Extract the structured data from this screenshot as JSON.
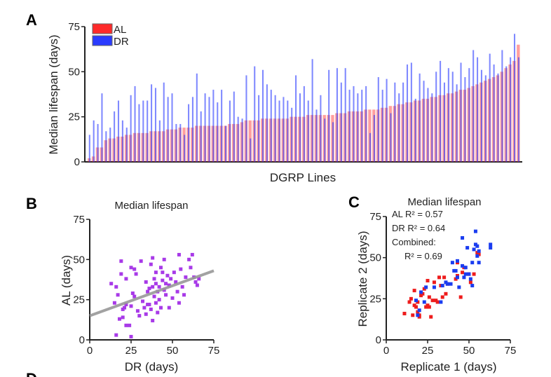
{
  "chart_data": [
    {
      "panel": "A",
      "type": "bar",
      "ylabel": "Median lifespan (days)",
      "xlabel": "DGRP Lines",
      "ylim": [
        0,
        75
      ],
      "yticks": [
        0,
        25,
        50,
        75
      ],
      "legend_placement": "top-left",
      "colors": {
        "AL": "#ff2a2a",
        "DR": "#2a3bff"
      },
      "series": [
        {
          "name": "AL",
          "values": [
            2,
            3,
            8,
            8,
            12,
            13,
            13,
            14,
            14,
            15,
            15,
            16,
            16,
            16,
            16,
            17,
            17,
            17,
            17,
            18,
            18,
            18,
            19,
            19,
            19,
            19,
            20,
            20,
            20,
            20,
            20,
            20,
            20,
            20,
            21,
            21,
            21,
            22,
            23,
            23,
            23,
            23,
            24,
            24,
            24,
            24,
            24,
            24,
            24,
            25,
            25,
            25,
            25,
            26,
            26,
            26,
            26,
            26,
            26,
            26,
            27,
            27,
            27,
            28,
            28,
            28,
            28,
            29,
            29,
            29,
            29,
            30,
            30,
            31,
            31,
            32,
            32,
            33,
            33,
            34,
            34,
            35,
            35,
            36,
            36,
            37,
            37,
            38,
            38,
            39,
            40,
            40,
            41,
            42,
            43,
            44,
            45,
            46,
            47,
            48,
            50,
            52,
            54,
            56,
            65
          ]
        },
        {
          "name": "DR",
          "values": [
            15,
            23,
            21,
            38,
            17,
            19,
            28,
            34,
            23,
            19,
            37,
            42,
            32,
            34,
            34,
            43,
            41,
            23,
            44,
            36,
            38,
            21,
            21,
            15,
            32,
            36,
            49,
            28,
            38,
            36,
            40,
            33,
            40,
            20,
            34,
            39,
            25,
            24,
            48,
            13,
            53,
            37,
            51,
            43,
            40,
            37,
            34,
            36,
            34,
            30,
            48,
            38,
            42,
            34,
            57,
            29,
            37,
            24,
            51,
            22,
            52,
            44,
            52,
            40,
            42,
            38,
            40,
            42,
            16,
            26,
            47,
            40,
            46,
            27,
            44,
            38,
            44,
            54,
            55,
            35,
            49,
            45,
            41,
            38,
            50,
            56,
            44,
            52,
            50,
            43,
            55,
            47,
            52,
            62,
            58,
            51,
            48,
            60,
            54,
            49,
            62,
            53,
            58,
            71,
            58
          ]
        }
      ]
    },
    {
      "panel": "B",
      "type": "scatter",
      "title": "Median lifespan",
      "xlabel": "DR (days)",
      "ylabel": "AL (days)",
      "xlim": [
        0,
        75
      ],
      "ylim": [
        0,
        75
      ],
      "xticks": [
        0,
        25,
        50,
        75
      ],
      "yticks": [
        0,
        25,
        50,
        75
      ],
      "colors": {
        "points": "#a83ae8",
        "fit": "#999999"
      },
      "fit_line": [
        [
          0,
          15
        ],
        [
          75,
          43
        ]
      ],
      "points": [
        [
          13,
          35
        ],
        [
          16,
          33
        ],
        [
          15,
          23
        ],
        [
          17,
          28
        ],
        [
          19,
          49
        ],
        [
          19,
          41
        ],
        [
          20,
          19
        ],
        [
          21,
          20
        ],
        [
          22,
          38
        ],
        [
          22,
          22
        ],
        [
          18,
          13
        ],
        [
          20,
          14
        ],
        [
          22,
          9
        ],
        [
          24,
          9
        ],
        [
          16,
          3
        ],
        [
          25,
          2
        ],
        [
          25,
          45
        ],
        [
          27,
          44
        ],
        [
          28,
          41
        ],
        [
          26,
          29
        ],
        [
          27,
          27
        ],
        [
          25,
          21
        ],
        [
          29,
          18
        ],
        [
          30,
          15
        ],
        [
          31,
          49
        ],
        [
          32,
          24
        ],
        [
          33,
          20
        ],
        [
          34,
          36
        ],
        [
          34,
          16
        ],
        [
          35,
          30
        ],
        [
          36,
          32
        ],
        [
          36,
          22
        ],
        [
          37,
          19
        ],
        [
          37,
          47
        ],
        [
          38,
          51
        ],
        [
          38,
          12
        ],
        [
          39,
          38
        ],
        [
          39,
          27
        ],
        [
          40,
          42
        ],
        [
          40,
          35
        ],
        [
          41,
          30
        ],
        [
          41,
          17
        ],
        [
          42,
          33
        ],
        [
          42,
          25
        ],
        [
          43,
          45
        ],
        [
          43,
          20
        ],
        [
          44,
          37
        ],
        [
          45,
          50
        ],
        [
          45,
          31
        ],
        [
          46,
          28
        ],
        [
          47,
          40
        ],
        [
          48,
          34
        ],
        [
          48,
          20
        ],
        [
          49,
          38
        ],
        [
          50,
          26
        ],
        [
          51,
          42
        ],
        [
          52,
          36
        ],
        [
          53,
          30
        ],
        [
          54,
          53
        ],
        [
          54,
          23
        ],
        [
          55,
          44
        ],
        [
          56,
          33
        ],
        [
          57,
          28
        ],
        [
          58,
          39
        ],
        [
          60,
          50
        ],
        [
          61,
          45
        ],
        [
          62,
          53
        ],
        [
          63,
          39
        ],
        [
          64,
          36
        ],
        [
          65,
          34
        ],
        [
          66,
          38
        ],
        [
          44,
          42
        ],
        [
          38,
          33
        ],
        [
          40,
          23
        ],
        [
          35,
          22
        ],
        [
          46,
          35
        ]
      ]
    },
    {
      "panel": "C",
      "type": "scatter",
      "title": "Median lifespan",
      "xlabel": "Replicate 1 (days)",
      "ylabel": "Replicate 2 (days)",
      "xlim": [
        0,
        75
      ],
      "ylim": [
        0,
        75
      ],
      "xticks": [
        0,
        25,
        50,
        75
      ],
      "yticks": [
        0,
        25,
        50,
        75
      ],
      "annotations": [
        "AL R² = 0.57",
        "DR R² = 0.64",
        "Combined:",
        "R² = 0.69"
      ],
      "series": [
        {
          "name": "AL",
          "color": "#ee1c1c",
          "points": [
            [
              11,
              16
            ],
            [
              14,
              23
            ],
            [
              15,
              25
            ],
            [
              16,
              15
            ],
            [
              17,
              21
            ],
            [
              17,
              30
            ],
            [
              18,
              20
            ],
            [
              19,
              23
            ],
            [
              19,
              17
            ],
            [
              20,
              15
            ],
            [
              20,
              14
            ],
            [
              21,
              27
            ],
            [
              22,
              28
            ],
            [
              23,
              31
            ],
            [
              24,
              20
            ],
            [
              25,
              36
            ],
            [
              25,
              21
            ],
            [
              26,
              26
            ],
            [
              26,
              20
            ],
            [
              27,
              14
            ],
            [
              28,
              24
            ],
            [
              29,
              35
            ],
            [
              30,
              24
            ],
            [
              31,
              23
            ],
            [
              32,
              38
            ],
            [
              33,
              33
            ],
            [
              34,
              26
            ],
            [
              35,
              38
            ],
            [
              36,
              28
            ],
            [
              37,
              34
            ],
            [
              42,
              37
            ],
            [
              43,
              47
            ],
            [
              43,
              39
            ],
            [
              45,
              26
            ],
            [
              46,
              41
            ],
            [
              47,
              44
            ],
            [
              50,
              40
            ],
            [
              51,
              35
            ],
            [
              53,
              40
            ],
            [
              55,
              53
            ],
            [
              56,
              52
            ]
          ]
        },
        {
          "name": "DR",
          "color": "#1a3cf0",
          "points": [
            [
              18,
              24
            ],
            [
              19,
              15
            ],
            [
              20,
              18
            ],
            [
              21,
              29
            ],
            [
              23,
              23
            ],
            [
              24,
              32
            ],
            [
              29,
              32
            ],
            [
              33,
              23
            ],
            [
              34,
              33
            ],
            [
              36,
              35
            ],
            [
              37,
              34
            ],
            [
              39,
              34
            ],
            [
              40,
              47
            ],
            [
              41,
              42
            ],
            [
              42,
              42
            ],
            [
              43,
              48
            ],
            [
              43,
              38
            ],
            [
              44,
              32
            ],
            [
              46,
              62
            ],
            [
              46,
              45
            ],
            [
              47,
              38
            ],
            [
              48,
              40
            ],
            [
              48,
              44
            ],
            [
              49,
              56
            ],
            [
              50,
              40
            ],
            [
              51,
              37
            ],
            [
              52,
              33
            ],
            [
              52,
              47
            ],
            [
              53,
              55
            ],
            [
              54,
              66
            ],
            [
              54,
              58
            ],
            [
              55,
              51
            ],
            [
              55,
              57
            ],
            [
              56,
              47
            ],
            [
              56,
              54
            ],
            [
              63,
              58
            ],
            [
              63,
              56
            ]
          ]
        }
      ]
    }
  ],
  "labels": {
    "A": "A",
    "B": "B",
    "C": "C",
    "D": "D"
  }
}
